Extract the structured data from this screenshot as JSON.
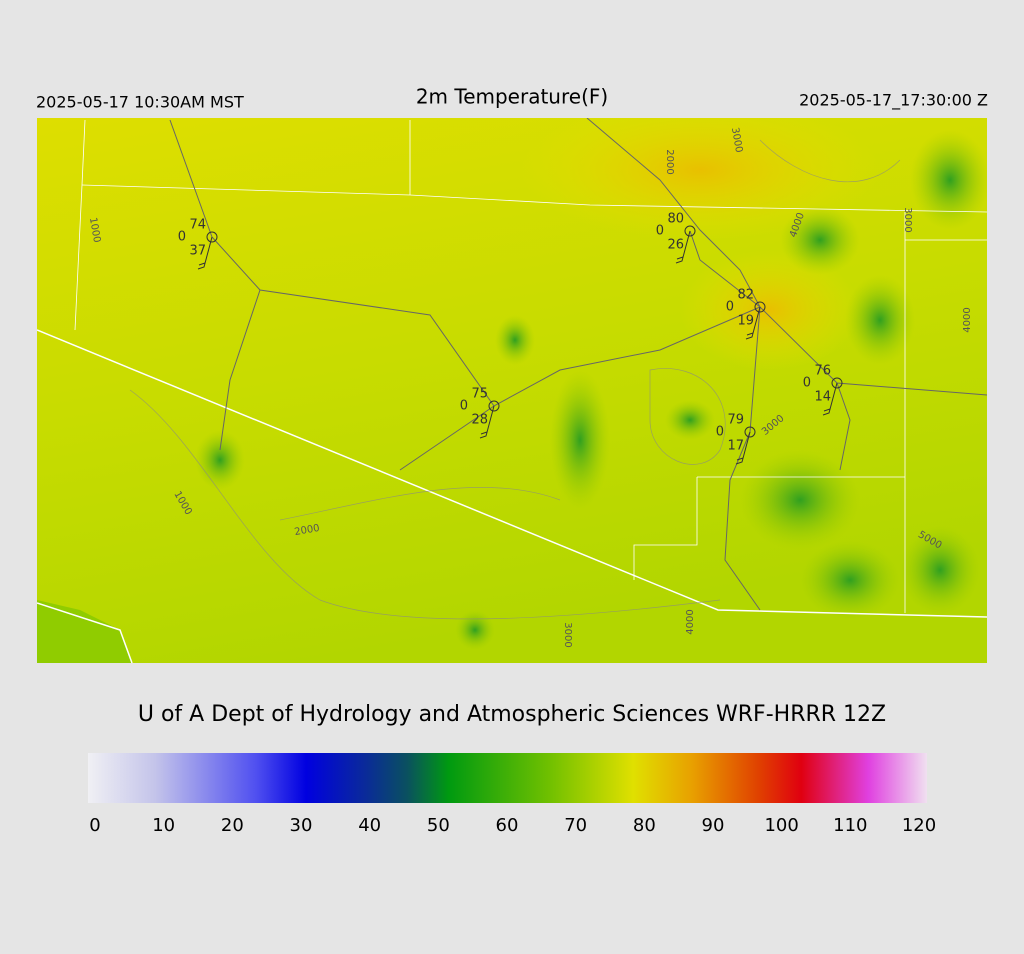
{
  "header": {
    "left": "2025-05-17 10:30AM MST",
    "title": "2m Temperature(F)",
    "right": "2025-05-17_17:30:00 Z"
  },
  "stations": [
    {
      "temperature": 74,
      "precip": 0,
      "dewpoint": 37
    },
    {
      "temperature": 80,
      "precip": 0,
      "dewpoint": 26
    },
    {
      "temperature": 82,
      "precip": 0,
      "dewpoint": 19
    },
    {
      "temperature": 76,
      "precip": 0,
      "dewpoint": 14
    },
    {
      "temperature": 75,
      "precip": 0,
      "dewpoint": 28
    },
    {
      "temperature": 79,
      "precip": 0,
      "dewpoint": 17
    }
  ],
  "contour_labels": [
    1000,
    2000,
    3000,
    4000,
    3000,
    4000,
    1000,
    2000,
    3000,
    5000,
    4000,
    3000
  ],
  "credit": "U of A Dept of Hydrology and Atmospheric Sciences WRF-HRRR 12Z",
  "colorbar": {
    "ticks": [
      0,
      10,
      20,
      30,
      40,
      50,
      60,
      70,
      80,
      90,
      100,
      110,
      120
    ]
  }
}
